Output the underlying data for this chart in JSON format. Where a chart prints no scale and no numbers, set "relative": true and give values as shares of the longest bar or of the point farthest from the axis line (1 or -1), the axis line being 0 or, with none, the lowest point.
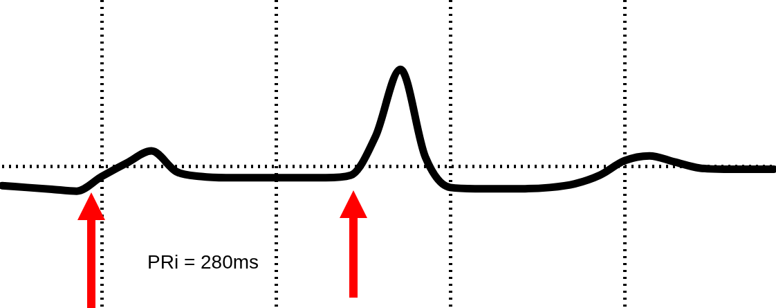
{
  "chart_data": {
    "type": "line",
    "relative": true,
    "categories": [
      null,
      null,
      null,
      null,
      null,
      null,
      null,
      null,
      null,
      null,
      null,
      null,
      null,
      null,
      null,
      null,
      null,
      null,
      null,
      null,
      null,
      null,
      null,
      null,
      null,
      null,
      null,
      null,
      null,
      null,
      null,
      null
    ],
    "series": [
      {
        "color": "#000000",
        "values": [
          0.045,
          0.03,
          0.015,
          0,
          0.12,
          0.23,
          0.33,
          0.16,
          0.12,
          0.11,
          0.11,
          0.11,
          0.11,
          0.11,
          0.13,
          0.45,
          1,
          0.28,
          0.03,
          0.02,
          0.02,
          0.02,
          0.03,
          0.06,
          0.13,
          0.25,
          0.29,
          0.24,
          0.19,
          0.18,
          0.18,
          0.18
        ]
      }
    ],
    "annotations": [
      "PRi = 280ms"
    ],
    "grid": true,
    "legend": false,
    "marker": "none",
    "line_style": "solid"
  }
}
